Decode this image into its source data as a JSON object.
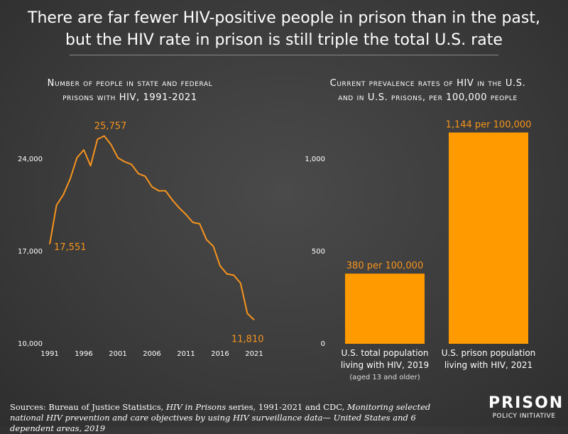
{
  "headline": {
    "line1": "There are far fewer HIV-positive people in prison than in the past,",
    "line2": "but the HIV rate in prison is still triple the total U.S. rate"
  },
  "colors": {
    "accent": "#f7941d",
    "bar": "#ff9a00",
    "background": "#3d3d3d"
  },
  "chart_data": [
    {
      "type": "line",
      "title_line1": "Number of people in state and federal",
      "title_line2": "prisons with HIV, 1991-2021",
      "x": [
        1991,
        1992,
        1993,
        1994,
        1995,
        1996,
        1997,
        1998,
        1999,
        2000,
        2001,
        2002,
        2003,
        2004,
        2005,
        2006,
        2007,
        2008,
        2009,
        2010,
        2011,
        2012,
        2013,
        2014,
        2015,
        2016,
        2017,
        2018,
        2019,
        2020,
        2021
      ],
      "y": [
        17551,
        20500,
        21300,
        22500,
        24100,
        24700,
        23500,
        25500,
        25757,
        25100,
        24100,
        23800,
        23600,
        22900,
        22700,
        21900,
        21600,
        21600,
        20900,
        20300,
        19800,
        19200,
        19100,
        17900,
        17400,
        15900,
        15300,
        15200,
        14600,
        12300,
        11810
      ],
      "x_ticks": [
        "1991",
        "1996",
        "2001",
        "2006",
        "2011",
        "2016",
        "2021"
      ],
      "x_tick_values": [
        1991,
        1996,
        2001,
        2006,
        2011,
        2016,
        2021
      ],
      "y_ticks": [
        "10,000",
        "17,000",
        "24,000"
      ],
      "y_tick_values": [
        10000,
        17000,
        24000
      ],
      "ylim": [
        10000,
        27000
      ],
      "xlim": [
        1991,
        2021
      ],
      "annotations": [
        {
          "x": 1991,
          "y": 17551,
          "text": "17,551"
        },
        {
          "x": 1999,
          "y": 25757,
          "text": "25,757"
        },
        {
          "x": 2021,
          "y": 11810,
          "text": "11,810"
        }
      ]
    },
    {
      "type": "bar",
      "title_line1": "Current prevalence rates of HIV in the U.S.",
      "title_line2": "and in U.S. prisons, per 100,000 people",
      "categories": [
        {
          "line1": "U.S. total population",
          "line2": "living with HIV, 2019",
          "note": "(aged 13 and older)"
        },
        {
          "line1": "U.S. prison population",
          "line2": "living with HIV, 2021",
          "note": ""
        }
      ],
      "values": [
        380,
        1144
      ],
      "labels": [
        "380 per 100,000",
        "1,144 per 100,000"
      ],
      "y_ticks": [
        "0",
        "500",
        "1,000"
      ],
      "y_tick_values": [
        0,
        500,
        1000
      ],
      "ylim": [
        0,
        1200
      ]
    }
  ],
  "sources": {
    "prefix": "Sources: Bureau of Justice Statistics, ",
    "italic1": "HIV in Prisons",
    "mid": " series, 1991-2021 and CDC, ",
    "italic2": "Monitoring selected national HIV prevention and care objectives by using HIV surveillance data— United States and 6 dependent areas, 2019"
  },
  "logo": {
    "main": "PRISON",
    "sub": "POLICY INITIATIVE"
  }
}
